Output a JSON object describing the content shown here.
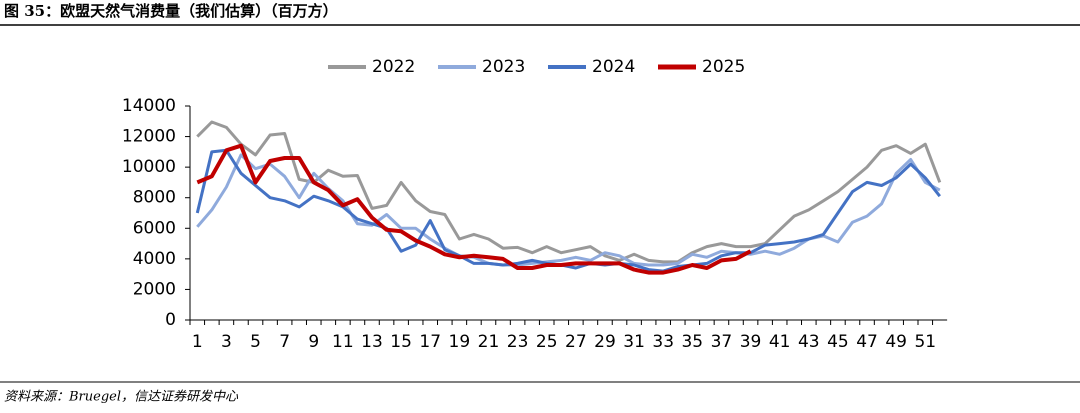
{
  "chart_data": {
    "type": "line",
    "title": "图 35：欧盟天然气消费量（我们估算）（百万方）",
    "source": "资料来源：Bruegel，信达证券研发中心",
    "categories": [
      1,
      null,
      3,
      null,
      5,
      null,
      7,
      null,
      9,
      null,
      11,
      null,
      13,
      null,
      15,
      null,
      17,
      null,
      19,
      null,
      21,
      null,
      23,
      null,
      25,
      null,
      27,
      null,
      29,
      null,
      31,
      null,
      33,
      null,
      35,
      null,
      37,
      null,
      39,
      null,
      41,
      null,
      43,
      null,
      45,
      null,
      47,
      null,
      49,
      null,
      51,
      null
    ],
    "series": [
      {
        "name": "2022",
        "color": "#999999",
        "values": [
          12000,
          12950,
          12600,
          11500,
          10800,
          12100,
          12200,
          9200,
          9000,
          9800,
          9400,
          9450,
          7300,
          7500,
          9000,
          7800,
          7100,
          6900,
          5300,
          5600,
          5300,
          4700,
          4750,
          4400,
          4800,
          4400,
          4600,
          4800,
          4200,
          3900,
          4300,
          3900,
          3800,
          3800,
          4400,
          4800,
          5000,
          4800,
          4800,
          5000,
          5900,
          6800,
          7200,
          7800,
          8400,
          9200,
          10000,
          11100,
          11400,
          10900,
          11500,
          9000
        ]
      },
      {
        "name": "2023",
        "color": "#8faadc",
        "values": [
          6100,
          7200,
          8700,
          10800,
          9900,
          10200,
          9400,
          8000,
          9600,
          8600,
          7800,
          6300,
          6200,
          6900,
          6000,
          6000,
          5300,
          4700,
          4200,
          4100,
          3700,
          3600,
          3600,
          3700,
          3800,
          3900,
          4100,
          3900,
          4400,
          4200,
          3700,
          3600,
          3600,
          3700,
          4300,
          4100,
          4500,
          4400,
          4300,
          4500,
          4300,
          4700,
          5300,
          5500,
          5100,
          6400,
          6800,
          7600,
          9600,
          10500,
          9000,
          8500
        ]
      },
      {
        "name": "2024",
        "color": "#4472c4",
        "values": [
          7000,
          11000,
          11100,
          9600,
          8800,
          8000,
          7800,
          7400,
          8100,
          7800,
          7400,
          6600,
          6300,
          6000,
          4500,
          4900,
          6500,
          4600,
          4200,
          3700,
          3700,
          3600,
          3700,
          3900,
          3700,
          3600,
          3400,
          3700,
          3600,
          3700,
          3600,
          3300,
          3200,
          3500,
          3600,
          3700,
          4200,
          4400,
          4400,
          4900,
          5000,
          5100,
          5300,
          5600,
          7000,
          8400,
          9000,
          8800,
          9300,
          10200,
          9300,
          8100
        ]
      },
      {
        "name": "2025",
        "color": "#c00000",
        "values": [
          9000,
          9400,
          11100,
          11400,
          9000,
          10400,
          10600,
          10600,
          9000,
          8500,
          7500,
          7900,
          6700,
          5900,
          5800,
          5200,
          4800,
          4300,
          4100,
          4200,
          4100,
          4000,
          3400,
          3400,
          3600,
          3600,
          3700,
          3700,
          3700,
          3700,
          3300,
          3100,
          3100,
          3300,
          3600,
          3400,
          3900,
          4000,
          4500,
          null,
          null,
          null,
          null,
          null,
          null,
          null,
          null,
          null,
          null,
          null,
          null,
          null
        ]
      }
    ],
    "ylim": [
      0,
      14000
    ],
    "yticks": [
      0,
      2000,
      4000,
      6000,
      8000,
      10000,
      12000,
      14000
    ]
  }
}
